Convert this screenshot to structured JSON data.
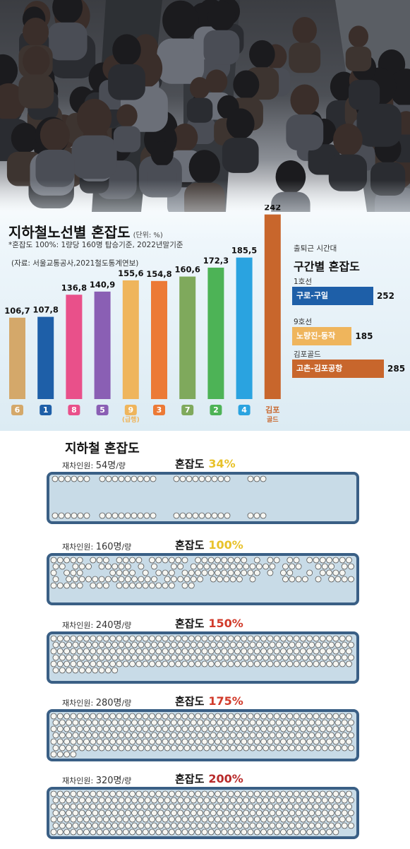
{
  "header": {
    "title": "지하철노선별 혼잡도",
    "unit": "(단위: %)",
    "note": "*혼잡도 100%: 1량당 160명 탑승기준, 2022년말기준",
    "source": "(자료: 서울교통공사,2021철도통계연보)"
  },
  "chart_data": [
    {
      "type": "bar",
      "title": "지하철노선별 혼잡도",
      "categories": [
        "6",
        "1",
        "8",
        "5",
        "9\n(급행)",
        "3",
        "7",
        "2",
        "4",
        "김포\n골드"
      ],
      "values": [
        106.7,
        107.8,
        136.8,
        140.9,
        155.6,
        154.8,
        160.6,
        172.3,
        185.5,
        242
      ],
      "value_labels": [
        "106,7",
        "107,8",
        "136,8",
        "140,9",
        "155,6",
        "154,8",
        "160,6",
        "172,3",
        "185,5",
        "242"
      ],
      "colors": [
        "#d4a86a",
        "#1e5fa8",
        "#e9508a",
        "#8a5fb4",
        "#efb55c",
        "#ec7a36",
        "#7fa95c",
        "#4db356",
        "#2aa3e0",
        "#c8662c"
      ],
      "ylim": [
        0,
        250
      ]
    },
    {
      "type": "bar",
      "title": "구간별 혼잡도",
      "orientation": "horizontal",
      "groups": [
        "1호선",
        "9호선",
        "김포골드"
      ],
      "categories": [
        "구로-구일",
        "노량진-동작",
        "고촌-김포공항"
      ],
      "values": [
        252,
        185,
        285
      ],
      "colors": [
        "#1e5fa8",
        "#efb55c",
        "#c8662c"
      ]
    }
  ],
  "section": {
    "kicker": "출퇴근 시간대",
    "title": "구간별 혼잡도"
  },
  "lower": {
    "title": "지하철 혼잡도",
    "rows": [
      {
        "label": "재차인원:",
        "count": "54명",
        "suffix": "/량",
        "cong_label": "혼잡도",
        "pct": "34%",
        "pct_color": "#e8c22a",
        "people": 54
      },
      {
        "label": "재차인원:",
        "count": "160명",
        "suffix": "/량",
        "cong_label": "혼잡도",
        "pct": "100%",
        "pct_color": "#e8c22a",
        "people": 160
      },
      {
        "label": "재차인원:",
        "count": "240명",
        "suffix": "/량",
        "cong_label": "혼잡도",
        "pct": "150%",
        "pct_color": "#d13a2a",
        "people": 240
      },
      {
        "label": "재차인원:",
        "count": "280명",
        "suffix": "/량",
        "cong_label": "혼잡도",
        "pct": "175%",
        "pct_color": "#d13a2a",
        "people": 280
      },
      {
        "label": "재차인원:",
        "count": "320명",
        "suffix": "/량",
        "cong_label": "혼잡도",
        "pct": "200%",
        "pct_color": "#b82a2a",
        "people": 320
      }
    ]
  }
}
